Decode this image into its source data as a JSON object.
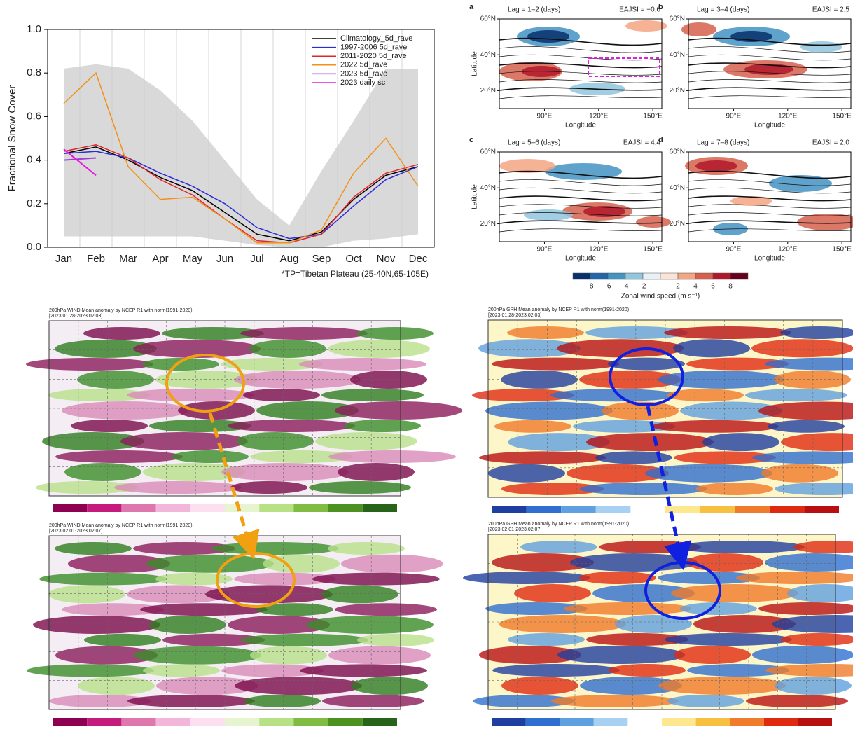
{
  "chart_data": [
    {
      "type": "line",
      "ylabel": "Fractional Snow Cover",
      "footnote": "*TP=Tibetan Plateau (25-40N,65-105E)",
      "categories": [
        "Jan",
        "Feb",
        "Mar",
        "Apr",
        "May",
        "Jun",
        "Jul",
        "Aug",
        "Sep",
        "Oct",
        "Nov",
        "Dec"
      ],
      "ylim": [
        0,
        1.0
      ],
      "yticks": [
        {
          "value": 0,
          "label": "0.0"
        },
        0.2,
        0.4,
        0.6,
        0.8,
        {
          "value": 1,
          "label": "1.0"
        }
      ],
      "band": {
        "color": "#d9d9d9",
        "lower": [
          0.05,
          0.05,
          0.05,
          0.05,
          0.05,
          0.03,
          0.01,
          0.0,
          0.0,
          0.03,
          0.04,
          0.06
        ],
        "upper": [
          0.82,
          0.84,
          0.82,
          0.72,
          0.58,
          0.4,
          0.22,
          0.1,
          0.35,
          0.58,
          0.82,
          0.82
        ]
      },
      "series": [
        {
          "name": "Climatology_5d_rave",
          "color": "#000000",
          "values": [
            0.43,
            0.46,
            0.4,
            0.32,
            0.26,
            0.16,
            0.06,
            0.03,
            0.07,
            0.22,
            0.33,
            0.37
          ]
        },
        {
          "name": "1997-2006 5d_rave",
          "color": "#2b2bd9",
          "values": [
            0.43,
            0.44,
            0.41,
            0.34,
            0.28,
            0.2,
            0.09,
            0.04,
            0.06,
            0.19,
            0.31,
            0.37
          ]
        },
        {
          "name": "2011-2020 5d_rave",
          "color": "#e0252a",
          "values": [
            0.44,
            0.47,
            0.41,
            0.31,
            0.24,
            0.13,
            0.03,
            0.02,
            0.06,
            0.23,
            0.34,
            0.38
          ]
        },
        {
          "name": "2022 5d_rave",
          "color": "#f39019",
          "values": [
            0.66,
            0.8,
            0.37,
            0.22,
            0.23,
            0.13,
            0.02,
            0.02,
            0.08,
            0.34,
            0.5,
            0.28
          ]
        },
        {
          "name": "2023 5d_rave",
          "color": "#a23cd6",
          "values": [
            0.4,
            0.41,
            null,
            null,
            null,
            null,
            null,
            null,
            null,
            null,
            null,
            null
          ]
        },
        {
          "name": "2023 daily sc",
          "color": "#e819e0",
          "values": [
            0.45,
            0.33,
            null,
            null,
            null,
            null,
            null,
            null,
            null,
            null,
            null,
            null
          ]
        }
      ]
    },
    {
      "type": "map",
      "panel": "a",
      "title": "Lag = 1–2 (days)",
      "annotation": "EAJSI = −0.6",
      "ylabel": "Latitude",
      "xlabel": "Longitude",
      "xlim": [
        65,
        155
      ],
      "ylim": [
        10,
        60
      ],
      "xticks": [
        {
          "value": 90,
          "label": "90°E"
        },
        {
          "value": 120,
          "label": "120°E"
        },
        {
          "value": 150,
          "label": "150°E"
        }
      ],
      "yticks": [
        {
          "value": 20,
          "label": "20°N"
        },
        {
          "value": 40,
          "label": "40°N"
        },
        {
          "value": 60,
          "label": "60°N"
        }
      ]
    },
    {
      "type": "map",
      "panel": "b",
      "title": "Lag = 3–4 (days)",
      "annotation": "EAJSI = 2.5",
      "xlabel": "Longitude",
      "xlim": [
        65,
        155
      ],
      "ylim": [
        10,
        60
      ],
      "xticks": [
        {
          "value": 90,
          "label": "90°E"
        },
        {
          "value": 120,
          "label": "120°E"
        },
        {
          "value": 150,
          "label": "150°E"
        }
      ],
      "yticks": [
        {
          "value": 20,
          "label": "20°N"
        },
        {
          "value": 40,
          "label": "40°N"
        },
        {
          "value": 60,
          "label": "60°N"
        }
      ]
    },
    {
      "type": "map",
      "panel": "c",
      "title": "Lag = 5–6 (days)",
      "annotation": "EAJSI = 4.4",
      "ylabel": "Latitude",
      "xlabel": "Longitude",
      "xlim": [
        65,
        155
      ],
      "ylim": [
        10,
        60
      ],
      "xticks": [
        {
          "value": 90,
          "label": "90°E"
        },
        {
          "value": 120,
          "label": "120°E"
        },
        {
          "value": 150,
          "label": "150°E"
        }
      ],
      "yticks": [
        {
          "value": 20,
          "label": "20°N"
        },
        {
          "value": 40,
          "label": "40°N"
        },
        {
          "value": 60,
          "label": "60°N"
        }
      ]
    },
    {
      "type": "map",
      "panel": "d",
      "title": "Lag = 7–8 (days)",
      "annotation": "EAJSI = 2.0",
      "xlabel": "Longitude",
      "xlim": [
        65,
        155
      ],
      "ylim": [
        10,
        60
      ],
      "xticks": [
        {
          "value": 90,
          "label": "90°E"
        },
        {
          "value": 120,
          "label": "120°E"
        },
        {
          "value": 150,
          "label": "150°E"
        }
      ],
      "yticks": [
        {
          "value": 20,
          "label": "20°N"
        },
        {
          "value": 40,
          "label": "40°N"
        },
        {
          "value": 60,
          "label": "60°N"
        }
      ]
    },
    {
      "type": "colorbar",
      "label": "Zonal wind speed (m s⁻¹)",
      "lim": [
        -10,
        10
      ],
      "ticks": [
        -8,
        -6,
        -4,
        -2,
        2,
        4,
        6,
        8
      ],
      "colors": [
        "#08306b",
        "#2166ac",
        "#4393c3",
        "#92c5de",
        "#e8f1f7",
        "#fbe3d6",
        "#f4a582",
        "#d6604d",
        "#b2182b",
        "#67001f"
      ]
    },
    {
      "type": "field",
      "style": "wind",
      "title": "200hPa WIND Mean anomaly by NCEP R1 with norm(1991-2020)",
      "subtitle": "[2023.01.28-2023.02.03]"
    },
    {
      "type": "field",
      "style": "wind",
      "title": "200hPa WIND Mean anomaly by NCEP R1 with norm(1991-2020)",
      "subtitle": "[2023.02.01-2023.02.07]"
    },
    {
      "type": "field",
      "style": "gph",
      "title": "200hPa GPH Mean anomaly by NCEP R1 with norm(1991-2020)",
      "subtitle": "[2023.01.28-2023.02.03]"
    },
    {
      "type": "field",
      "style": "gph",
      "title": "200hPa GPH Mean anomaly by NCEP R1 with norm(1991-2020)",
      "subtitle": "[2023.02.01-2023.02.07]"
    }
  ]
}
